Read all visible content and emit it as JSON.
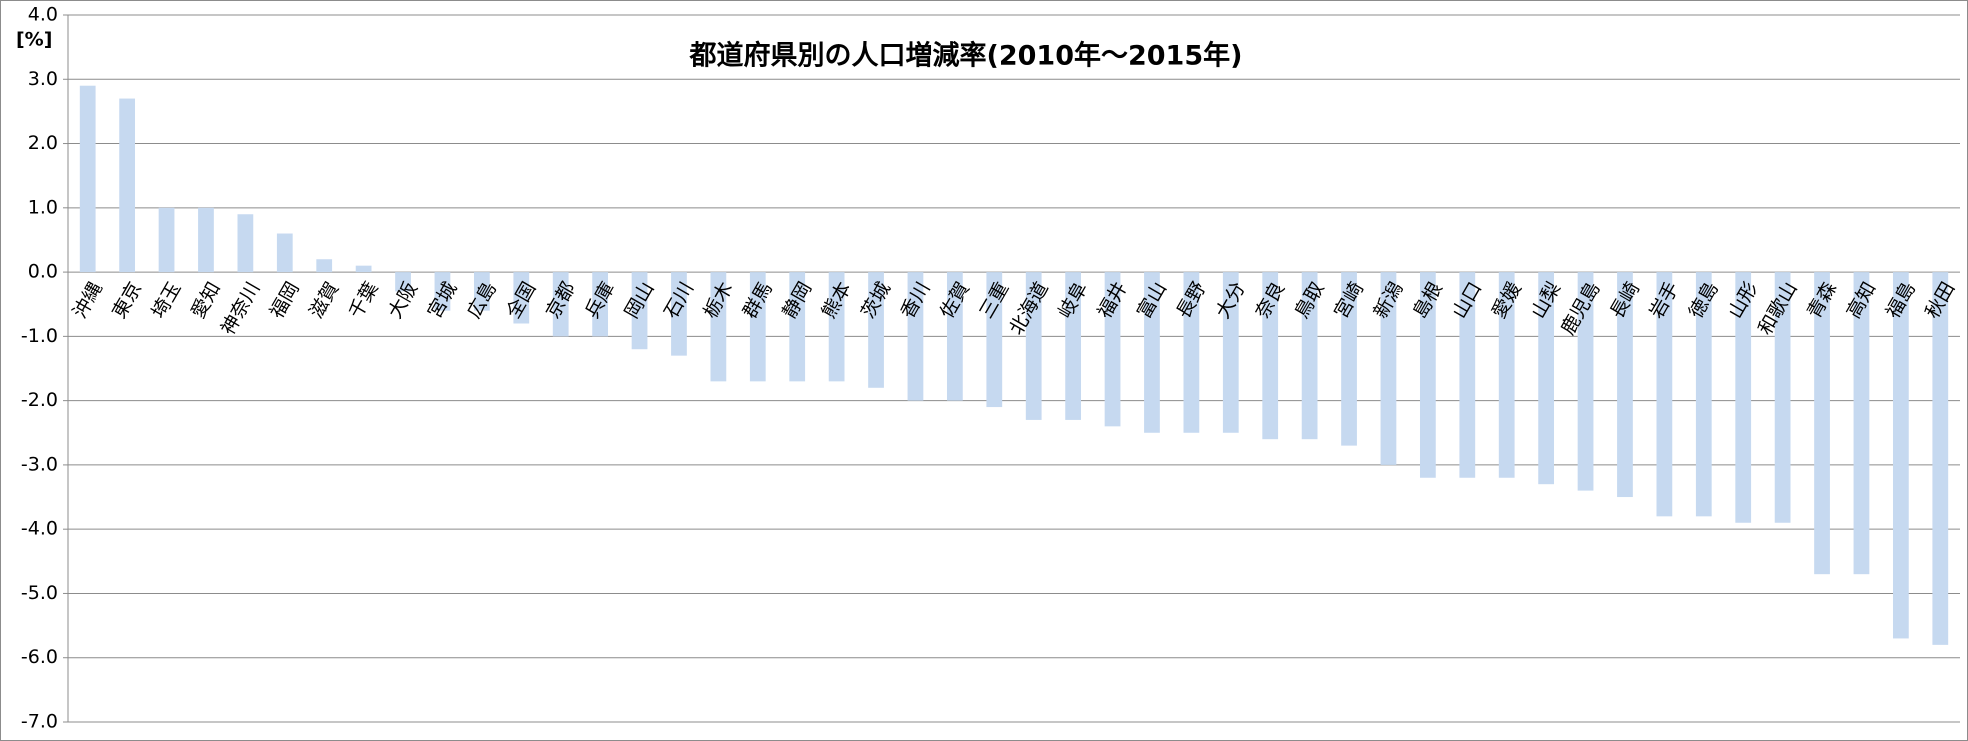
{
  "chart_data": {
    "type": "bar",
    "title": "都道府県別の人口増減率(2010年～2015年)",
    "y_label": "[%]",
    "categories": [
      "沖縄",
      "東京",
      "埼玉",
      "愛知",
      "神奈川",
      "福岡",
      "滋賀",
      "千葉",
      "大阪",
      "宮城",
      "広島",
      "全国",
      "京都",
      "兵庫",
      "岡山",
      "石川",
      "栃木",
      "群馬",
      "静岡",
      "熊本",
      "茨城",
      "香川",
      "佐賀",
      "三重",
      "北海道",
      "岐阜",
      "福井",
      "富山",
      "長野",
      "大分",
      "奈良",
      "鳥取",
      "宮崎",
      "新潟",
      "島根",
      "山口",
      "愛媛",
      "山梨",
      "鹿児島",
      "長崎",
      "岩手",
      "徳島",
      "山形",
      "和歌山",
      "青森",
      "高知",
      "福島",
      "秋田"
    ],
    "values": [
      2.9,
      2.7,
      1.0,
      1.0,
      0.9,
      0.6,
      0.2,
      0.1,
      -0.3,
      -0.6,
      -0.6,
      -0.8,
      -1.0,
      -1.0,
      -1.2,
      -1.3,
      -1.7,
      -1.7,
      -1.7,
      -1.7,
      -1.8,
      -2.0,
      -2.0,
      -2.1,
      -2.3,
      -2.3,
      -2.4,
      -2.5,
      -2.5,
      -2.5,
      -2.6,
      -2.6,
      -2.7,
      -3.0,
      -3.2,
      -3.2,
      -3.2,
      -3.3,
      -3.4,
      -3.5,
      -3.8,
      -3.8,
      -3.9,
      -3.9,
      -4.7,
      -4.7,
      -5.7,
      -5.8
    ],
    "color": "#c6d9f0",
    "ylim": [
      -7,
      4
    ],
    "yticks": [
      {
        "value": 4,
        "label": "4.0"
      },
      {
        "value": 3,
        "label": "3.0"
      },
      {
        "value": 2,
        "label": "2.0"
      },
      {
        "value": 1,
        "label": "1.0"
      },
      {
        "value": 0,
        "label": "0.0"
      },
      {
        "value": -1,
        "label": "-1.0"
      },
      {
        "value": -2,
        "label": "-2.0"
      },
      {
        "value": -3,
        "label": "-3.0"
      },
      {
        "value": -4,
        "label": "-4.0"
      },
      {
        "value": -5,
        "label": "-5.0"
      },
      {
        "value": -6,
        "label": "-6.0"
      },
      {
        "value": -7,
        "label": "-7.0"
      }
    ],
    "grid": true
  }
}
